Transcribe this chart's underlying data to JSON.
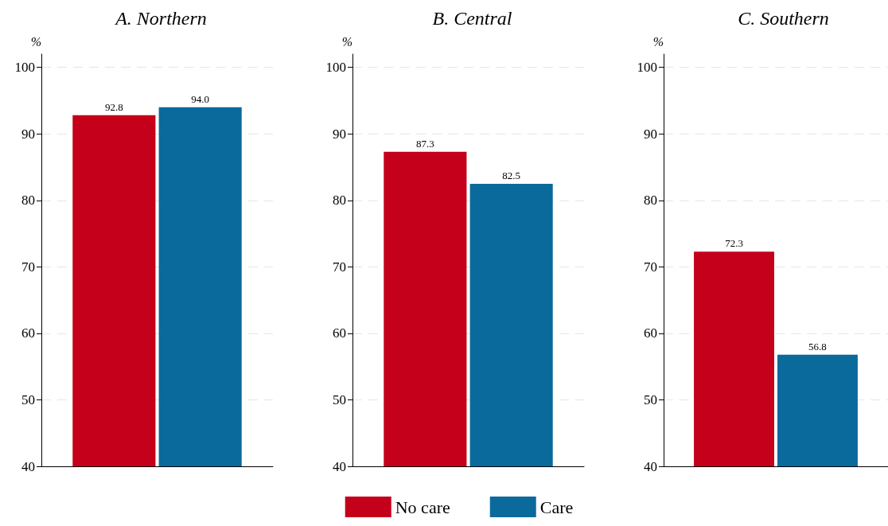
{
  "chart_data": [
    {
      "type": "bar",
      "title": "A. Northern",
      "ylabel": "%",
      "categories": [
        null
      ],
      "series": [
        {
          "color": "#c4001a",
          "values": [
            92.8
          ],
          "value_labels": [
            "92.8"
          ]
        },
        {
          "color": "#0a6a9c",
          "values": [
            94.0
          ],
          "value_labels": [
            "94.0"
          ]
        }
      ],
      "ylim": [
        40,
        102
      ],
      "yticks": [
        40,
        50,
        60,
        70,
        80,
        90,
        100
      ],
      "grid": "y",
      "legend": false
    },
    {
      "type": "bar",
      "title": "B. Central",
      "ylabel": "%",
      "categories": [
        null
      ],
      "series": [
        {
          "name": "No care",
          "color": "#c4001a",
          "values": [
            87.3
          ],
          "value_labels": [
            "87.3"
          ]
        },
        {
          "name": "Care",
          "color": "#0a6a9c",
          "values": [
            82.5
          ],
          "value_labels": [
            "82.5"
          ]
        }
      ],
      "ylim": [
        40,
        102
      ],
      "yticks": [
        40,
        50,
        60,
        70,
        80,
        90,
        100
      ],
      "grid": "y",
      "legend": "bottom"
    },
    {
      "type": "bar",
      "title": "C. Southern",
      "ylabel": "%",
      "categories": [
        null
      ],
      "series": [
        {
          "color": "#c4001a",
          "values": [
            72.3
          ],
          "value_labels": [
            "72.3"
          ]
        },
        {
          "color": "#0a6a9c",
          "values": [
            56.8
          ],
          "value_labels": [
            "56.8"
          ]
        }
      ],
      "ylim": [
        40,
        102
      ],
      "yticks": [
        40,
        50,
        60,
        70,
        80,
        90,
        100
      ],
      "grid": "y",
      "legend": false
    }
  ]
}
